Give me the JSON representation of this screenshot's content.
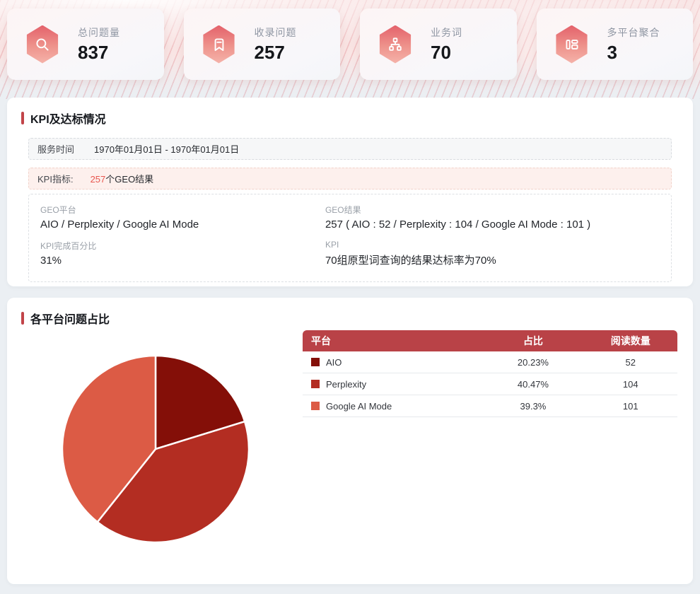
{
  "stat_cards": [
    {
      "label": "总问题量",
      "value": "837",
      "icon": "search-icon"
    },
    {
      "label": "收录问题",
      "value": "257",
      "icon": "bookmark-icon"
    },
    {
      "label": "业务词",
      "value": "70",
      "icon": "sitemap-icon"
    },
    {
      "label": "多平台聚合",
      "value": "3",
      "icon": "layout-icon"
    }
  ],
  "kpi_section": {
    "title": "KPI及达标情况",
    "service_time_label": "服务时间",
    "service_time_value": "1970年01月01日 - 1970年01月01日",
    "kpi_target_label": "KPI指标:",
    "kpi_target_highlight": "257",
    "kpi_target_suffix": "个GEO结果",
    "details": [
      {
        "label": "GEO平台",
        "value": "AIO / Perplexity / Google AI Mode"
      },
      {
        "label": "GEO结果",
        "value": "257 ( AIO : 52 / Perplexity : 104 / Google AI Mode : 101 )"
      },
      {
        "label": "KPI完成百分比",
        "value": "31%"
      },
      {
        "label": "KPI",
        "value": "70组原型词查询的结果达标率为70%"
      }
    ]
  },
  "platform_section": {
    "title": "各平台问题占比"
  },
  "chart_data": {
    "type": "pie",
    "title": "各平台问题占比",
    "start_angle": "top, clockwise",
    "legend_position": "table-right",
    "table_headers": [
      "平台",
      "占比",
      "阅读数量"
    ],
    "series": [
      {
        "name": "AIO",
        "percent": 20.23,
        "percent_label": "20.23%",
        "value": 52,
        "color": "#840f08"
      },
      {
        "name": "Perplexity",
        "percent": 40.47,
        "percent_label": "40.47%",
        "value": 104,
        "color": "#b32d22"
      },
      {
        "name": "Google AI Mode",
        "percent": 39.3,
        "percent_label": "39.3%",
        "value": 101,
        "color": "#dc5b45"
      }
    ]
  },
  "colors": {
    "accent_bar": "#c24449",
    "table_header_bg": "#b94247",
    "kpi_highlight": "#e8574f",
    "hexagon_top": "#e4626b",
    "hexagon_bottom": "#f5b3aa"
  }
}
